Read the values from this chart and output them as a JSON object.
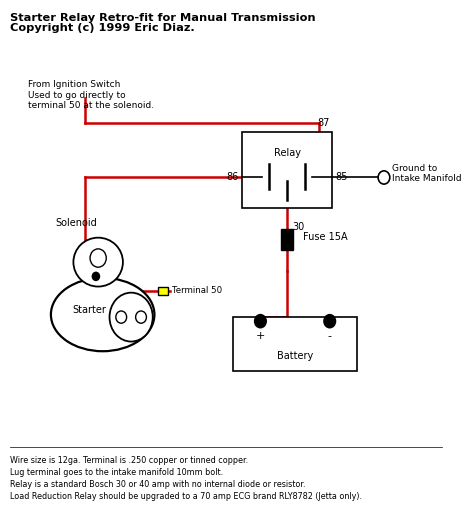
{
  "title_line1": "Starter Relay Retro-fit for Manual Transmission",
  "title_line2": "Copyright (c) 1999 Eric Diaz.",
  "wire_color": "#cc0000",
  "black_color": "#000000",
  "relay_label": "Relay",
  "fuse_label": "Fuse 15A",
  "battery_label": "Battery",
  "solenoid_label": "Solenoid",
  "starter_label": "Starter",
  "terminal50_label": "Terminal 50",
  "ground_label": "Ground to\nIntake Manifold",
  "ignition_label": "From Ignition Switch\nUsed to go directly to\nterminal 50 at the solenoid.",
  "footnote_line1": "Wire size is 12ga. Terminal is .250 copper or tinned copper.",
  "footnote_line2": "Lug terminal goes to the intake manifold 10mm bolt.",
  "footnote_line3": "Relay is a standard Bosch 30 or 40 amp with no internal diode or resistor.",
  "footnote_line4": "Load Reduction Relay should be upgraded to a 70 amp ECG brand RLY8782 (Jetta only)."
}
